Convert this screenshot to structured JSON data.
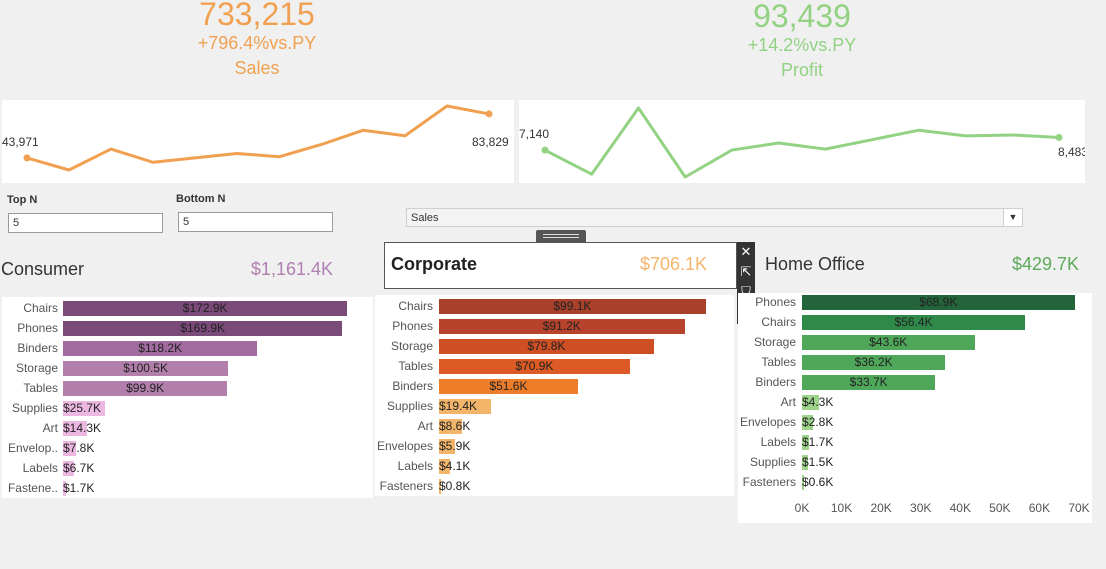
{
  "kpis": {
    "sales": {
      "value": "733,215",
      "change": "+796.4%vs.PY",
      "label": "Sales",
      "color": "#f0a050"
    },
    "profit": {
      "value": "93,439",
      "change": "+14.2%vs.PY",
      "label": "Profit",
      "color": "#92d282"
    }
  },
  "sparklines": {
    "sales": {
      "start_label": "43,971",
      "end_label": "83,829",
      "color": "#f0a050",
      "values": [
        43971,
        33000,
        52000,
        40000,
        44000,
        48000,
        45000,
        56000,
        69000,
        64000,
        91000,
        83829
      ]
    },
    "profit": {
      "start_label": "7,140",
      "end_label": "8,483",
      "color": "#92d282",
      "values": [
        7140,
        4600,
        11600,
        4300,
        7150,
        7900,
        7250,
        8250,
        9250,
        8650,
        8750,
        8483
      ]
    }
  },
  "params": {
    "top_n": {
      "label": "Top N",
      "value": "5"
    },
    "bottom_n": {
      "label": "Bottom N",
      "value": "5"
    },
    "measure": {
      "value": "Sales"
    }
  },
  "chart_data": [
    {
      "type": "bar",
      "title": "Consumer",
      "total": "$1,161.4K",
      "categories": [
        "Chairs",
        "Phones",
        "Binders",
        "Storage",
        "Tables",
        "Supplies",
        "Art",
        "Envelop..",
        "Labels",
        "Fastene.."
      ],
      "values": [
        172.9,
        169.9,
        118.2,
        100.5,
        99.9,
        25.7,
        14.3,
        7.8,
        6.7,
        1.7
      ],
      "labels": [
        "$172.9K",
        "$169.9K",
        "$118.2K",
        "$100.5K",
        "$99.9K",
        "$25.7K",
        "$14.3K",
        "$7.8K",
        "$6.7K",
        "$1.7K"
      ],
      "colors": [
        "#7a4a78",
        "#7a4a78",
        "#a26b9f",
        "#b27fac",
        "#b27fac",
        "#ecb8e2",
        "#ecb8e2",
        "#ecb8e2",
        "#ecb8e2",
        "#ecb8e2"
      ],
      "total_color": "#b07fb0",
      "xlim": [
        0,
        180
      ]
    },
    {
      "type": "bar",
      "title": "Corporate",
      "total": "$706.1K",
      "categories": [
        "Chairs",
        "Phones",
        "Storage",
        "Tables",
        "Binders",
        "Supplies",
        "Art",
        "Envelopes",
        "Labels",
        "Fasteners"
      ],
      "values": [
        99.1,
        91.2,
        79.8,
        70.9,
        51.6,
        19.4,
        8.6,
        5.9,
        4.1,
        0.8
      ],
      "labels": [
        "$99.1K",
        "$91.2K",
        "$79.8K",
        "$70.9K",
        "$51.6K",
        "$19.4K",
        "$8.6K",
        "$5.9K",
        "$4.1K",
        "$0.8K"
      ],
      "colors": [
        "#a8402a",
        "#b8432c",
        "#cf4f24",
        "#db5a25",
        "#ee7d2a",
        "#f3b56a",
        "#f3b56a",
        "#f3b56a",
        "#f3b56a",
        "#f3b56a"
      ],
      "total_color": "#f3b56a",
      "xlim": [
        0,
        104
      ]
    },
    {
      "type": "bar",
      "title": "Home Office",
      "total": "$429.7K",
      "categories": [
        "Phones",
        "Chairs",
        "Storage",
        "Tables",
        "Binders",
        "Art",
        "Envelopes",
        "Labels",
        "Supplies",
        "Fasteners"
      ],
      "values": [
        68.9,
        56.4,
        43.6,
        36.2,
        33.7,
        4.3,
        2.8,
        1.7,
        1.5,
        0.6
      ],
      "labels": [
        "$68.9K",
        "$56.4K",
        "$43.6K",
        "$36.2K",
        "$33.7K",
        "$4.3K",
        "$2.8K",
        "$1.7K",
        "$1.5K",
        "$0.6K"
      ],
      "colors": [
        "#24643a",
        "#2f8a4a",
        "#4fa75a",
        "#4fa75a",
        "#4fa75a",
        "#9ed38a",
        "#9ed38a",
        "#9ed38a",
        "#9ed38a",
        "#9ed38a"
      ],
      "total_color": "#5daa5a",
      "xlim": [
        0,
        70
      ],
      "ticks": [
        "0K",
        "10K",
        "20K",
        "30K",
        "40K",
        "50K",
        "60K",
        "70K"
      ]
    }
  ]
}
